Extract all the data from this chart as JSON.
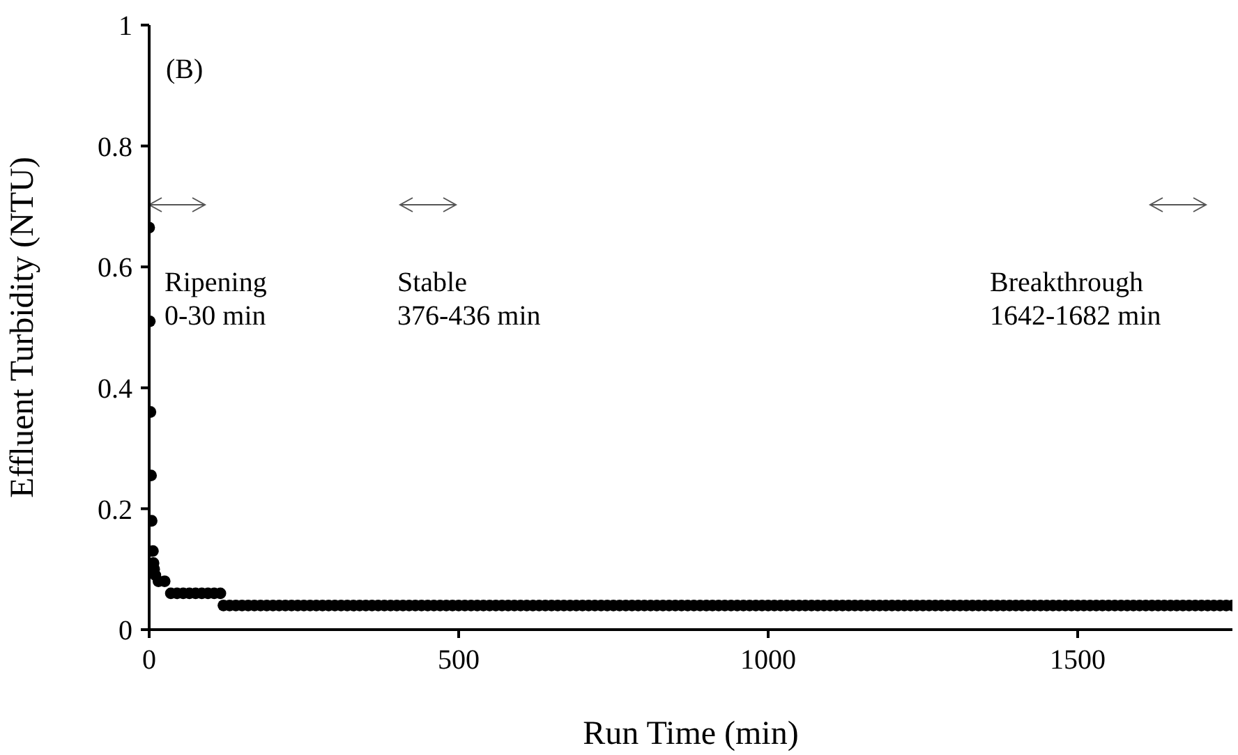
{
  "chart_data": {
    "type": "scatter",
    "xlabel": "Run Time (min)",
    "ylabel": "Effluent Turbidity (NTU)",
    "xlim": [
      0,
      1750
    ],
    "xticks": [
      0,
      500,
      1000,
      1500
    ],
    "ylim": [
      0,
      1
    ],
    "yticks": [
      0,
      0.2,
      0.4,
      0.6,
      0.8,
      1
    ],
    "grid": false,
    "legend": false,
    "marker": "circle",
    "annotations": [
      "(B)",
      "Ripening\n0-30 min",
      "Stable\n376-436 min",
      "Breakthrough\n1642-1682 min"
    ],
    "series": [
      {
        "color": "#000000",
        "x": [
          0,
          1,
          2,
          3,
          4,
          6,
          7,
          8,
          10,
          15,
          25,
          35,
          45,
          55,
          65,
          75,
          85,
          95,
          105,
          115,
          120,
          130,
          140,
          150,
          160,
          170,
          180,
          190,
          200,
          210,
          220,
          230,
          240,
          250,
          260,
          270,
          280,
          290,
          300,
          310,
          320,
          330,
          340,
          350,
          360,
          370,
          380,
          390,
          400,
          410,
          420,
          430,
          440,
          450,
          460,
          470,
          480,
          490,
          500,
          510,
          520,
          530,
          540,
          550,
          560,
          570,
          580,
          590,
          600,
          610,
          620,
          630,
          640,
          650,
          660,
          670,
          680,
          690,
          700,
          710,
          720,
          730,
          740,
          750,
          760,
          770,
          780,
          790,
          800,
          810,
          820,
          830,
          840,
          850,
          860,
          870,
          880,
          890,
          900,
          910,
          920,
          930,
          940,
          950,
          960,
          970,
          980,
          990,
          1000,
          1010,
          1020,
          1030,
          1040,
          1050,
          1060,
          1070,
          1080,
          1090,
          1100,
          1110,
          1120,
          1130,
          1140,
          1150,
          1160,
          1170,
          1180,
          1190,
          1200,
          1210,
          1220,
          1230,
          1240,
          1250,
          1260,
          1270,
          1280,
          1290,
          1300,
          1310,
          1320,
          1330,
          1340,
          1350,
          1360,
          1370,
          1380,
          1390,
          1400,
          1410,
          1420,
          1430,
          1440,
          1450,
          1460,
          1470,
          1480,
          1490,
          1500,
          1510,
          1520,
          1530,
          1540,
          1550,
          1560,
          1570,
          1580,
          1590,
          1600,
          1610,
          1620,
          1630,
          1640,
          1650,
          1660,
          1670,
          1680,
          1690,
          1700,
          1710,
          1720,
          1730,
          1740,
          1750
        ],
        "values": [
          0.665,
          0.51,
          0.36,
          0.255,
          0.18,
          0.13,
          0.11,
          0.1,
          0.09,
          0.08,
          0.08,
          0.06,
          0.06,
          0.06,
          0.06,
          0.06,
          0.06,
          0.06,
          0.06,
          0.06,
          0.04,
          0.04,
          0.04,
          0.04,
          0.04,
          0.04,
          0.04,
          0.04,
          0.04,
          0.04,
          0.04,
          0.04,
          0.04,
          0.04,
          0.04,
          0.04,
          0.04,
          0.04,
          0.04,
          0.04,
          0.04,
          0.04,
          0.04,
          0.04,
          0.04,
          0.04,
          0.04,
          0.04,
          0.04,
          0.04,
          0.04,
          0.04,
          0.04,
          0.04,
          0.04,
          0.04,
          0.04,
          0.04,
          0.04,
          0.04,
          0.04,
          0.04,
          0.04,
          0.04,
          0.04,
          0.04,
          0.04,
          0.04,
          0.04,
          0.04,
          0.04,
          0.04,
          0.04,
          0.04,
          0.04,
          0.04,
          0.04,
          0.04,
          0.04,
          0.04,
          0.04,
          0.04,
          0.04,
          0.04,
          0.04,
          0.04,
          0.04,
          0.04,
          0.04,
          0.04,
          0.04,
          0.04,
          0.04,
          0.04,
          0.04,
          0.04,
          0.04,
          0.04,
          0.04,
          0.04,
          0.04,
          0.04,
          0.04,
          0.04,
          0.04,
          0.04,
          0.04,
          0.04,
          0.04,
          0.04,
          0.04,
          0.04,
          0.04,
          0.04,
          0.04,
          0.04,
          0.04,
          0.04,
          0.04,
          0.04,
          0.04,
          0.04,
          0.04,
          0.04,
          0.04,
          0.04,
          0.04,
          0.04,
          0.04,
          0.04,
          0.04,
          0.04,
          0.04,
          0.04,
          0.04,
          0.04,
          0.04,
          0.04,
          0.04,
          0.04,
          0.04,
          0.04,
          0.04,
          0.04,
          0.04,
          0.04,
          0.04,
          0.04,
          0.04,
          0.04,
          0.04,
          0.04,
          0.04,
          0.04,
          0.04,
          0.04,
          0.04,
          0.04,
          0.04,
          0.04,
          0.04,
          0.04,
          0.04,
          0.04,
          0.04,
          0.04,
          0.04,
          0.04,
          0.04,
          0.04,
          0.04,
          0.04,
          0.04,
          0.04,
          0.04,
          0.04,
          0.04,
          0.04,
          0.04,
          0.04,
          0.04,
          0.04,
          0.04,
          0.04
        ]
      }
    ]
  }
}
